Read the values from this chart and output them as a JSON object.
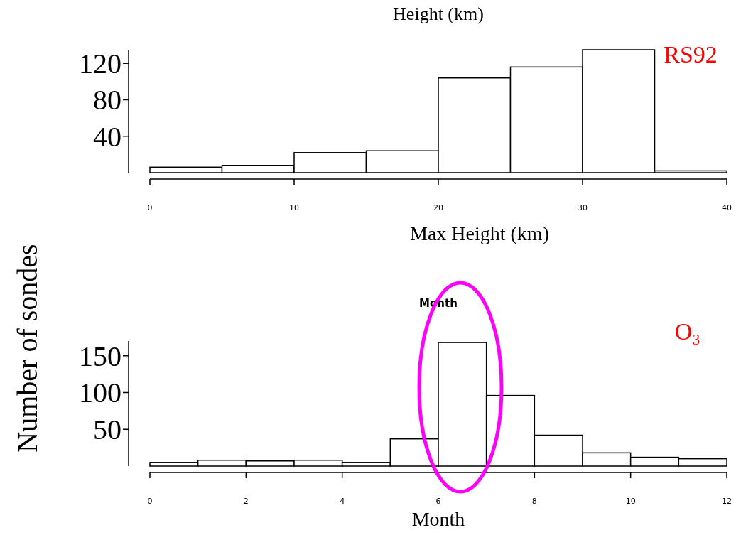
{
  "chart_data": [
    {
      "type": "histogram",
      "title": "Height (km)",
      "xlabel": "Max Height (km)",
      "annotations": [
        "RS92"
      ],
      "bins": [
        0,
        5,
        10,
        15,
        20,
        25,
        30,
        35,
        40
      ],
      "values": [
        6,
        8,
        22,
        24,
        104,
        116,
        135,
        2
      ],
      "color": "#ffffff",
      "xlim": [
        0,
        40
      ],
      "xticks": [
        0,
        10,
        20,
        30,
        40
      ],
      "ylim": [
        0,
        135
      ],
      "yticks": [
        40,
        80,
        120
      ],
      "grid": false
    },
    {
      "type": "histogram",
      "title": "Month",
      "xlabel": "Month",
      "ylabel": "Number of sondes",
      "annotations": [
        "O₃"
      ],
      "bins": [
        0,
        1,
        2,
        3,
        4,
        5,
        6,
        7,
        8,
        9,
        10,
        11,
        12
      ],
      "values": [
        5,
        8,
        7,
        8,
        5,
        37,
        168,
        96,
        42,
        18,
        12,
        10
      ],
      "color": "#ffffff",
      "xlim": [
        0,
        12
      ],
      "xticks": [
        0,
        2,
        4,
        6,
        8,
        10,
        12
      ],
      "ylim": [
        0,
        170
      ],
      "yticks": [
        50,
        100,
        150
      ],
      "grid": false
    }
  ]
}
